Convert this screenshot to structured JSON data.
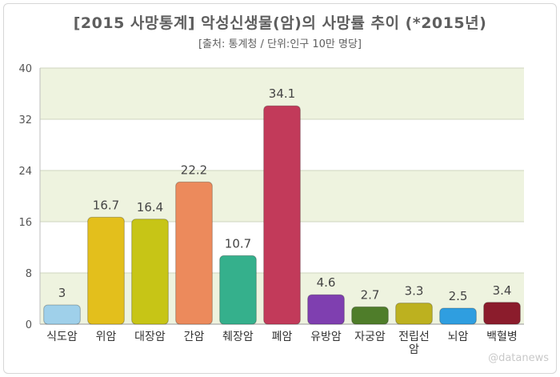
{
  "title": "[2015 사망통계] 악성신생물(암)의 사망률 추이 (*2015년)",
  "subtitle": "[출처: 통계청 / 단위:인구 10만 명당]",
  "watermark": "@datanews",
  "chart_data": {
    "type": "bar",
    "categories": [
      "식도암",
      "위암",
      "대장암",
      "간암",
      "췌장암",
      "폐암",
      "유방암",
      "자궁암",
      "전립선암",
      "뇌암",
      "백혈병"
    ],
    "category_display": [
      [
        "식도암"
      ],
      [
        "위암"
      ],
      [
        "대장암"
      ],
      [
        "간암"
      ],
      [
        "췌장암"
      ],
      [
        "폐암"
      ],
      [
        "유방암"
      ],
      [
        "자궁암"
      ],
      [
        "전립선",
        "암"
      ],
      [
        "뇌암"
      ],
      [
        "백혈병"
      ]
    ],
    "values": [
      3,
      16.7,
      16.4,
      22.2,
      10.7,
      34.1,
      4.6,
      2.7,
      3.3,
      2.5,
      3.4
    ],
    "data_labels": [
      "3",
      "16.7",
      "16.4",
      "22.2",
      "10.7",
      "34.1",
      "4.6",
      "2.7",
      "3.3",
      "2.5",
      "3.4"
    ],
    "colors": [
      "#9fd0ea",
      "#e3bf1c",
      "#c7c516",
      "#ec8a5c",
      "#35b08c",
      "#c23a5a",
      "#7f3fb0",
      "#4f7d2a",
      "#bdb11f",
      "#2f9ee0",
      "#8b1c2c"
    ],
    "yticks": [
      0,
      8,
      16,
      24,
      32,
      40
    ],
    "ylim": [
      0,
      40
    ],
    "grid": true,
    "band_color": "#eef3df",
    "xlabel": "",
    "ylabel": ""
  }
}
